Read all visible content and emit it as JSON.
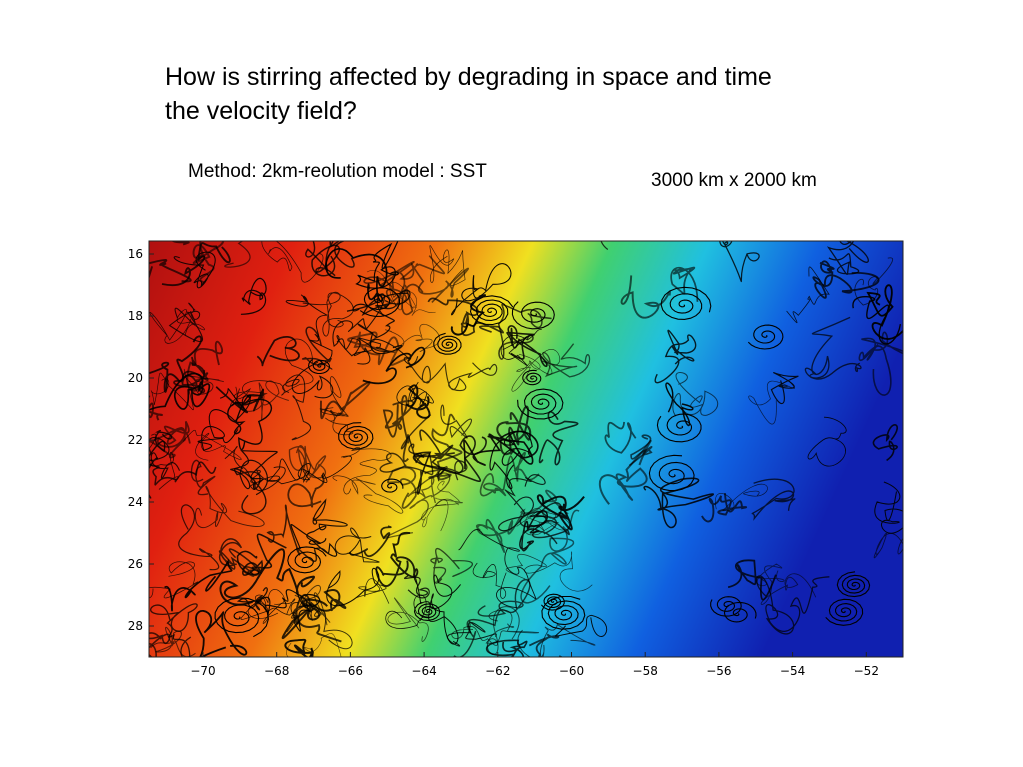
{
  "slide": {
    "title": "How is stirring affected by degrading in space and time\n the velocity field?",
    "method_text": "Method: 2km-reolution model : SST",
    "dimensions_text": "3000 km x 2000 km"
  },
  "figure": {
    "x_ticks": [
      "−70",
      "−68",
      "−66",
      "−64",
      "−62",
      "−60",
      "−58",
      "−56",
      "−54",
      "−52"
    ],
    "y_ticks": [
      "16",
      "18",
      "20",
      "22",
      "24",
      "26",
      "28"
    ],
    "colors": {
      "warm": "#b01010",
      "red": "#e02010",
      "orange": "#f07010",
      "yellow": "#f0e020",
      "green": "#40d070",
      "cyan": "#20c0e0",
      "blue": "#1060e0",
      "deep_blue": "#1020b0",
      "filaments": "#000000"
    }
  }
}
